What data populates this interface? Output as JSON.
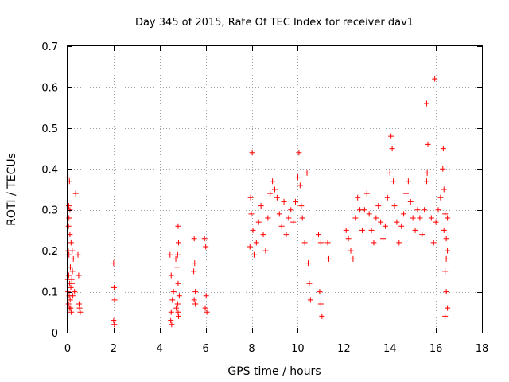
{
  "chart_data": {
    "type": "scatter",
    "title": "Day 345 of 2015, Rate Of TEC Index for receiver dav1",
    "xlabel": "GPS time / hours",
    "ylabel": "ROTI / TECUs",
    "xlim": [
      0,
      18
    ],
    "ylim": [
      0,
      0.7
    ],
    "x_ticks": [
      0,
      2,
      4,
      6,
      8,
      10,
      12,
      14,
      16,
      18
    ],
    "y_ticks": [
      0,
      0.1,
      0.2,
      0.3,
      0.4,
      0.5,
      0.6,
      0.7
    ],
    "x_tick_labels": [
      "0",
      "2",
      "4",
      "6",
      "8",
      "10",
      "12",
      "14",
      "16",
      "18"
    ],
    "y_tick_labels": [
      "0",
      "0.1",
      "0.2",
      "0.3",
      "0.4",
      "0.5",
      "0.6",
      "0.7"
    ],
    "grid": true,
    "marker": "+",
    "marker_color": "#ff0000",
    "series": [
      {
        "name": "dav1",
        "points": [
          [
            0.02,
            0.38
          ],
          [
            0.05,
            0.31
          ],
          [
            0.08,
            0.37
          ],
          [
            0.04,
            0.26
          ],
          [
            0.1,
            0.24
          ],
          [
            0.03,
            0.2
          ],
          [
            0.06,
            0.19
          ],
          [
            0.12,
            0.16
          ],
          [
            0.05,
            0.14
          ],
          [
            0.09,
            0.12
          ],
          [
            0.02,
            0.1
          ],
          [
            0.07,
            0.09
          ],
          [
            0.11,
            0.08
          ],
          [
            0.04,
            0.07
          ],
          [
            0.08,
            0.06
          ],
          [
            0.14,
            0.11
          ],
          [
            0.18,
            0.13
          ],
          [
            0.22,
            0.09
          ],
          [
            0.25,
            0.18
          ],
          [
            0.3,
            0.1
          ],
          [
            0.15,
            0.22
          ],
          [
            0.2,
            0.2
          ],
          [
            0.16,
            0.05
          ],
          [
            0.35,
            0.34
          ],
          [
            0.45,
            0.19
          ],
          [
            0.48,
            0.14
          ],
          [
            0.5,
            0.07
          ],
          [
            0.52,
            0.06
          ],
          [
            0.55,
            0.05
          ],
          [
            0.06,
            0.28
          ],
          [
            0.1,
            0.3
          ],
          [
            0.13,
            0.06
          ],
          [
            0.21,
            0.15
          ],
          [
            0.01,
            0.13
          ],
          [
            0.19,
            0.12
          ],
          [
            2.0,
            0.17
          ],
          [
            2.02,
            0.11
          ],
          [
            2.04,
            0.08
          ],
          [
            2.0,
            0.03
          ],
          [
            2.03,
            0.02
          ],
          [
            4.45,
            0.19
          ],
          [
            4.5,
            0.14
          ],
          [
            4.55,
            0.08
          ],
          [
            4.5,
            0.05
          ],
          [
            4.48,
            0.03
          ],
          [
            4.52,
            0.02
          ],
          [
            4.6,
            0.1
          ],
          [
            4.7,
            0.18
          ],
          [
            4.75,
            0.16
          ],
          [
            4.8,
            0.26
          ],
          [
            4.82,
            0.22
          ],
          [
            4.78,
            0.19
          ],
          [
            4.8,
            0.12
          ],
          [
            4.85,
            0.09
          ],
          [
            4.78,
            0.07
          ],
          [
            4.8,
            0.05
          ],
          [
            4.82,
            0.04
          ],
          [
            4.72,
            0.06
          ],
          [
            5.5,
            0.23
          ],
          [
            5.52,
            0.17
          ],
          [
            5.55,
            0.1
          ],
          [
            5.5,
            0.08
          ],
          [
            5.55,
            0.07
          ],
          [
            5.48,
            0.15
          ],
          [
            5.95,
            0.23
          ],
          [
            6.0,
            0.21
          ],
          [
            6.02,
            0.09
          ],
          [
            5.98,
            0.06
          ],
          [
            6.05,
            0.05
          ],
          [
            8.02,
            0.44
          ],
          [
            7.95,
            0.33
          ],
          [
            7.98,
            0.29
          ],
          [
            8.05,
            0.25
          ],
          [
            7.92,
            0.21
          ],
          [
            8.1,
            0.19
          ],
          [
            8.2,
            0.22
          ],
          [
            8.3,
            0.27
          ],
          [
            8.4,
            0.31
          ],
          [
            8.5,
            0.24
          ],
          [
            8.6,
            0.2
          ],
          [
            8.7,
            0.28
          ],
          [
            8.8,
            0.34
          ],
          [
            8.9,
            0.37
          ],
          [
            9.0,
            0.35
          ],
          [
            9.1,
            0.33
          ],
          [
            9.2,
            0.29
          ],
          [
            9.3,
            0.26
          ],
          [
            9.4,
            0.32
          ],
          [
            9.5,
            0.24
          ],
          [
            9.6,
            0.28
          ],
          [
            9.7,
            0.3
          ],
          [
            9.8,
            0.27
          ],
          [
            9.9,
            0.32
          ],
          [
            10.0,
            0.38
          ],
          [
            10.05,
            0.44
          ],
          [
            10.1,
            0.36
          ],
          [
            10.15,
            0.31
          ],
          [
            10.2,
            0.28
          ],
          [
            10.3,
            0.22
          ],
          [
            10.4,
            0.39
          ],
          [
            10.45,
            0.17
          ],
          [
            10.5,
            0.12
          ],
          [
            10.55,
            0.08
          ],
          [
            10.9,
            0.24
          ],
          [
            11.0,
            0.22
          ],
          [
            10.95,
            0.1
          ],
          [
            11.0,
            0.07
          ],
          [
            11.05,
            0.04
          ],
          [
            11.3,
            0.22
          ],
          [
            11.35,
            0.18
          ],
          [
            12.1,
            0.25
          ],
          [
            12.2,
            0.23
          ],
          [
            12.3,
            0.2
          ],
          [
            12.4,
            0.18
          ],
          [
            12.5,
            0.28
          ],
          [
            12.6,
            0.33
          ],
          [
            12.7,
            0.3
          ],
          [
            12.8,
            0.25
          ],
          [
            12.9,
            0.3
          ],
          [
            13.0,
            0.34
          ],
          [
            13.1,
            0.29
          ],
          [
            13.2,
            0.25
          ],
          [
            13.3,
            0.22
          ],
          [
            13.4,
            0.28
          ],
          [
            13.5,
            0.31
          ],
          [
            13.6,
            0.27
          ],
          [
            13.7,
            0.23
          ],
          [
            13.8,
            0.26
          ],
          [
            13.9,
            0.33
          ],
          [
            14.0,
            0.39
          ],
          [
            14.05,
            0.48
          ],
          [
            14.1,
            0.45
          ],
          [
            14.15,
            0.37
          ],
          [
            14.2,
            0.31
          ],
          [
            14.3,
            0.27
          ],
          [
            14.4,
            0.22
          ],
          [
            14.5,
            0.26
          ],
          [
            14.6,
            0.29
          ],
          [
            14.7,
            0.34
          ],
          [
            14.8,
            0.37
          ],
          [
            14.9,
            0.32
          ],
          [
            15.0,
            0.28
          ],
          [
            15.1,
            0.25
          ],
          [
            15.2,
            0.3
          ],
          [
            15.3,
            0.28
          ],
          [
            15.4,
            0.24
          ],
          [
            15.5,
            0.3
          ],
          [
            15.6,
            0.37
          ],
          [
            15.62,
            0.39
          ],
          [
            15.65,
            0.46
          ],
          [
            15.6,
            0.56
          ],
          [
            15.95,
            0.62
          ],
          [
            15.8,
            0.28
          ],
          [
            15.9,
            0.22
          ],
          [
            16.0,
            0.27
          ],
          [
            16.1,
            0.3
          ],
          [
            16.2,
            0.33
          ],
          [
            16.3,
            0.4
          ],
          [
            16.32,
            0.45
          ],
          [
            16.35,
            0.35
          ],
          [
            16.4,
            0.29
          ],
          [
            16.45,
            0.23
          ],
          [
            16.5,
            0.2
          ],
          [
            16.4,
            0.15
          ],
          [
            16.45,
            0.1
          ],
          [
            16.5,
            0.06
          ],
          [
            16.4,
            0.04
          ],
          [
            16.35,
            0.25
          ],
          [
            16.5,
            0.28
          ],
          [
            16.45,
            0.18
          ]
        ]
      }
    ]
  }
}
